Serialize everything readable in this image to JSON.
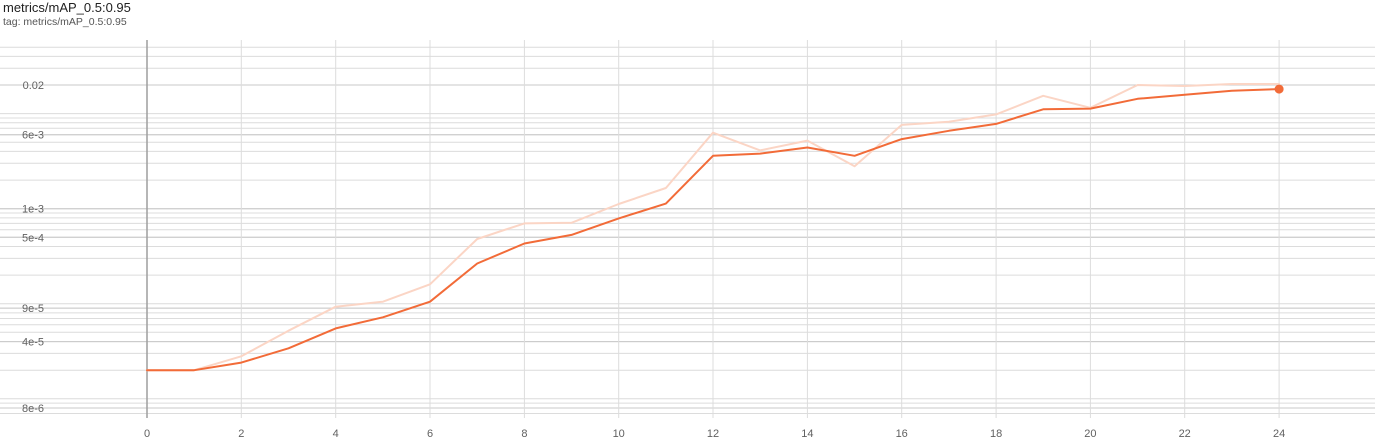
{
  "header": {
    "title": "metrics/mAP_0.5:0.95",
    "tag": "tag: metrics/mAP_0.5:0.95"
  },
  "colors": {
    "smoothed": "#f26b38",
    "raw": "#fbd5c5",
    "grid": "#dcdcdc",
    "axis": "#9e9e9e",
    "label": "#616161"
  },
  "chart_data": {
    "type": "line",
    "title": "metrics/mAP_0.5:0.95",
    "xlabel": "",
    "ylabel": "",
    "y_scale": "log",
    "xlim": [
      -3,
      26
    ],
    "ylim": [
      6e-06,
      0.032
    ],
    "grid": true,
    "x_ticks": [
      0,
      2,
      4,
      6,
      8,
      10,
      12,
      14,
      16,
      18,
      20,
      22,
      24
    ],
    "y_ticks": [
      {
        "value": 0.02,
        "label": "0.02"
      },
      {
        "value": 0.006,
        "label": "6e-3"
      },
      {
        "value": 0.001,
        "label": "1e-3"
      },
      {
        "value": 0.0005,
        "label": "5e-4"
      },
      {
        "value": 9e-05,
        "label": "9e-5"
      },
      {
        "value": 4e-05,
        "label": "4e-5"
      },
      {
        "value": 8e-06,
        "label": "8e-6"
      }
    ],
    "series": [
      {
        "role": "raw",
        "x": [
          0,
          1,
          2,
          3,
          4,
          5,
          6,
          7,
          8,
          9,
          10,
          11,
          12,
          13,
          14,
          15,
          16,
          17,
          18,
          19,
          20,
          21,
          22,
          23,
          24
        ],
        "values": [
          2e-05,
          2e-05,
          2.8e-05,
          5.2e-05,
          9.3e-05,
          0.000105,
          0.00016,
          0.00048,
          0.0007,
          0.00071,
          0.00112,
          0.00165,
          0.0063,
          0.0041,
          0.0052,
          0.0028,
          0.0076,
          0.0082,
          0.0098,
          0.0154,
          0.0115,
          0.02,
          0.0195,
          0.0205,
          0.0205
        ]
      },
      {
        "role": "smoothed",
        "x": [
          0,
          1,
          2,
          3,
          4,
          5,
          6,
          7,
          8,
          9,
          10,
          11,
          12,
          13,
          14,
          15,
          16,
          17,
          18,
          19,
          20,
          21,
          22,
          23,
          24
        ],
        "values": [
          2e-05,
          2e-05,
          2.4e-05,
          3.4e-05,
          5.5e-05,
          7.2e-05,
          0.000105,
          0.000265,
          0.00043,
          0.00053,
          0.00079,
          0.00113,
          0.0036,
          0.0038,
          0.0044,
          0.0036,
          0.0054,
          0.0066,
          0.0078,
          0.0111,
          0.0113,
          0.0143,
          0.0158,
          0.0174,
          0.0181
        ]
      }
    ],
    "last_point_marker": {
      "x": 24,
      "value": 0.0181
    }
  }
}
